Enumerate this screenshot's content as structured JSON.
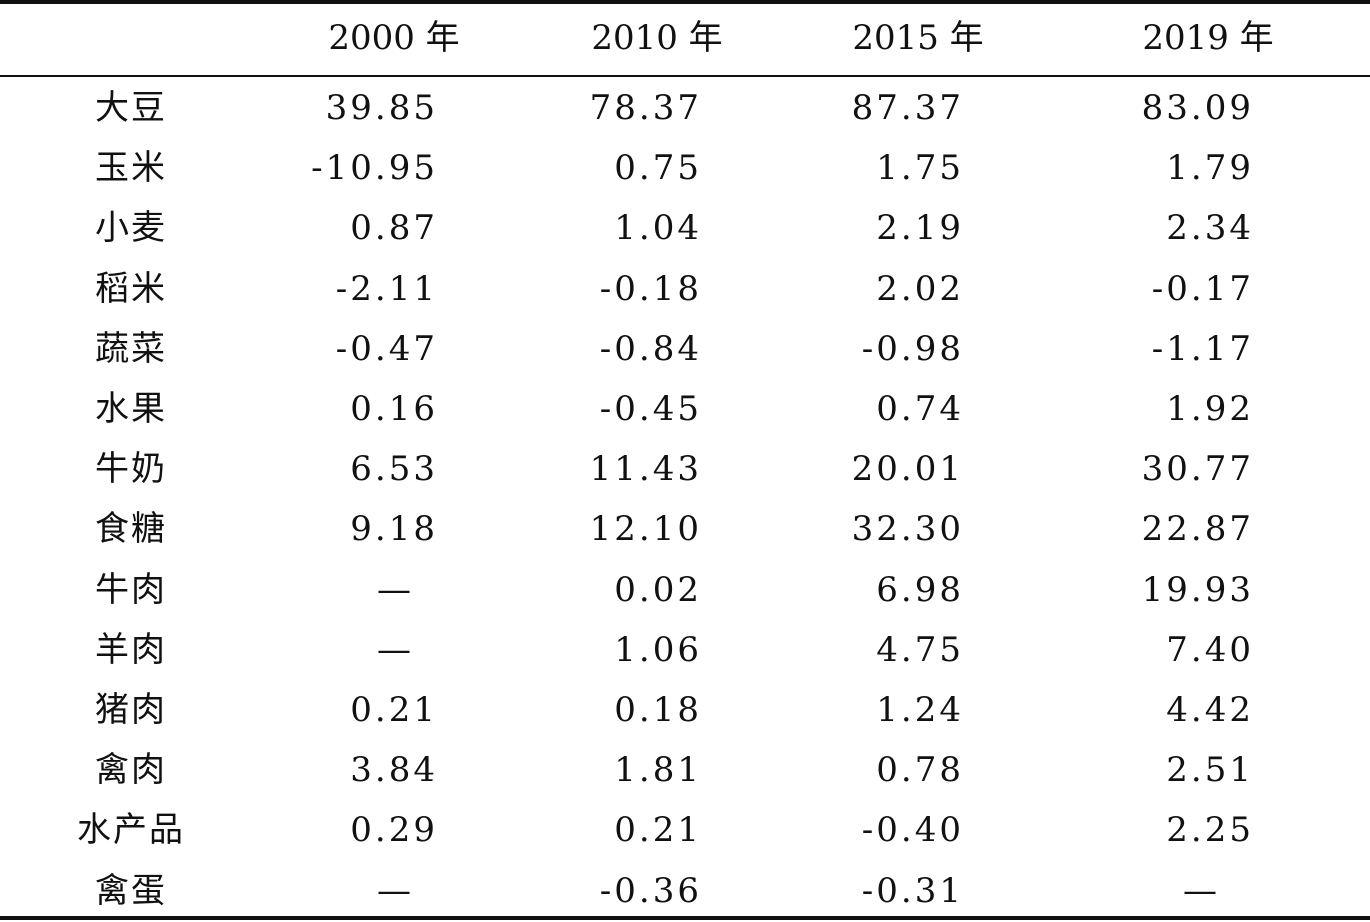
{
  "table": {
    "columns": [
      "",
      "2000 年",
      "2010 年",
      "2015 年",
      "2019 年"
    ],
    "rows": [
      {
        "label": "大豆",
        "values": [
          "39.85",
          "78.37",
          "87.37",
          "83.09"
        ]
      },
      {
        "label": "玉米",
        "values": [
          "-10.95",
          "0.75",
          "1.75",
          "1.79"
        ]
      },
      {
        "label": "小麦",
        "values": [
          "0.87",
          "1.04",
          "2.19",
          "2.34"
        ]
      },
      {
        "label": "稻米",
        "values": [
          "-2.11",
          "-0.18",
          "2.02",
          "-0.17"
        ]
      },
      {
        "label": "蔬菜",
        "values": [
          "-0.47",
          "-0.84",
          "-0.98",
          "-1.17"
        ]
      },
      {
        "label": "水果",
        "values": [
          "0.16",
          "-0.45",
          "0.74",
          "1.92"
        ]
      },
      {
        "label": "牛奶",
        "values": [
          "6.53",
          "11.43",
          "20.01",
          "30.77"
        ]
      },
      {
        "label": "食糖",
        "values": [
          "9.18",
          "12.10",
          "32.30",
          "22.87"
        ]
      },
      {
        "label": "牛肉",
        "values": [
          "—",
          "0.02",
          "6.98",
          "19.93"
        ]
      },
      {
        "label": "羊肉",
        "values": [
          "—",
          "1.06",
          "4.75",
          "7.40"
        ]
      },
      {
        "label": "猪肉",
        "values": [
          "0.21",
          "0.18",
          "1.24",
          "4.42"
        ]
      },
      {
        "label": "禽肉",
        "values": [
          "3.84",
          "1.81",
          "0.78",
          "2.51"
        ]
      },
      {
        "label": "水产品",
        "values": [
          "0.29",
          "0.21",
          "-0.40",
          "2.25"
        ]
      },
      {
        "label": "禽蛋",
        "values": [
          "—",
          "-0.36",
          "-0.31",
          "—"
        ]
      }
    ]
  }
}
